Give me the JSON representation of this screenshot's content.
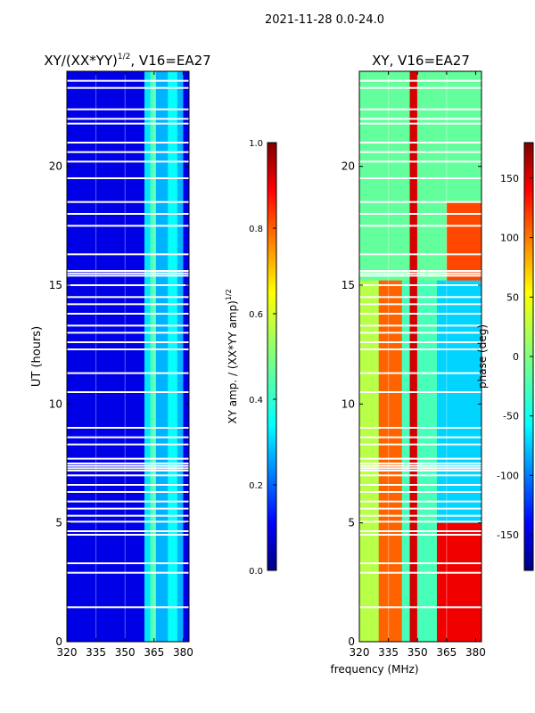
{
  "suptitle": "2021-11-28 0.0-24.0",
  "xlabel_common": "frequency (MHz)",
  "chart_data": [
    {
      "type": "heatmap",
      "title_text": "XY/(XX*YY)",
      "title_sup": "1/2",
      "title_suffix": ", V16=EA27",
      "ylabel": "UT (hours)",
      "x_ticks": [
        320,
        335,
        350,
        365,
        380
      ],
      "y_ticks": [
        0,
        5,
        10,
        15,
        20
      ],
      "xlim": [
        320,
        383
      ],
      "ylim": [
        0,
        24
      ],
      "colorbar": {
        "label_text": "XY amp. / (XX*YY amp)",
        "label_sup": "1/2",
        "ticks": [
          "0.0",
          "0.2",
          "0.4",
          "0.6",
          "0.8",
          "1.0"
        ],
        "range": [
          0,
          1
        ],
        "colormap": "jet"
      },
      "bands": [
        {
          "x0": 320,
          "x1": 360,
          "value": 0.1
        },
        {
          "x0": 360,
          "x1": 363,
          "value": 0.35
        },
        {
          "x0": 363,
          "x1": 366,
          "value": 0.45
        },
        {
          "x0": 366,
          "x1": 372,
          "value": 0.3
        },
        {
          "x0": 372,
          "x1": 377,
          "value": 0.38
        },
        {
          "x0": 377,
          "x1": 380,
          "value": 0.3
        },
        {
          "x0": 380,
          "x1": 383,
          "value": 0.1
        }
      ]
    },
    {
      "type": "heatmap",
      "title": "XY, V16=EA27",
      "ylabel": "",
      "x_ticks": [
        320,
        335,
        350,
        365,
        380
      ],
      "y_ticks": [
        0,
        5,
        10,
        15,
        20
      ],
      "xlim": [
        320,
        383
      ],
      "ylim": [
        0,
        24
      ],
      "colorbar": {
        "label": "phase (deg)",
        "ticks": [
          "-150",
          "-100",
          "-50",
          "0",
          "50",
          "100",
          "150"
        ],
        "range": [
          -180,
          180
        ],
        "colormap": "jet"
      },
      "regions": [
        {
          "x0": 320,
          "x1": 383,
          "y0": 15.2,
          "y1": 24,
          "value": -10
        },
        {
          "x0": 320,
          "x1": 330,
          "y0": 0,
          "y1": 15.2,
          "value": 20
        },
        {
          "x0": 330,
          "x1": 342,
          "y0": 0,
          "y1": 15.2,
          "value": 100
        },
        {
          "x0": 342,
          "x1": 360,
          "y0": 0,
          "y1": 15.2,
          "value": -20
        },
        {
          "x0": 360,
          "x1": 383,
          "y0": 0,
          "y1": 15.2,
          "value": -60
        },
        {
          "x0": 346,
          "x1": 350,
          "y0": 0,
          "y1": 24,
          "value": 150
        },
        {
          "x0": 365,
          "x1": 383,
          "y0": 15.2,
          "y1": 18.5,
          "value": 110
        },
        {
          "x0": 360,
          "x1": 383,
          "y0": 0,
          "y1": 5,
          "value": 140
        }
      ]
    }
  ],
  "gaps_hours": [
    1.45,
    2.9,
    3.3,
    4.5,
    4.65,
    5.05,
    5.3,
    5.6,
    5.9,
    6.3,
    6.6,
    7.0,
    7.2,
    7.3,
    7.4,
    7.5,
    7.7,
    8.3,
    8.6,
    9.0,
    10.5,
    11.3,
    12.3,
    12.6,
    13.0,
    13.3,
    13.8,
    14.2,
    14.5,
    15.0,
    15.4,
    15.5,
    15.6,
    16.3,
    17.5,
    18.0,
    18.5,
    19.5,
    20.2,
    20.6,
    21.0,
    21.8,
    22.0,
    22.4,
    23.3,
    23.6
  ]
}
